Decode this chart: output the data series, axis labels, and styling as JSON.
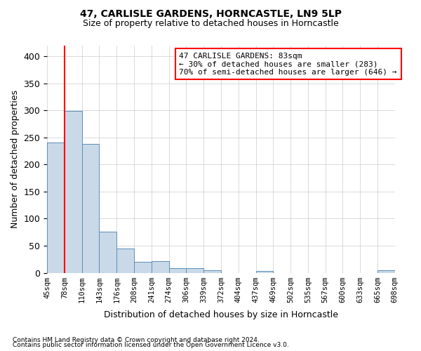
{
  "title1": "47, CARLISLE GARDENS, HORNCASTLE, LN9 5LP",
  "title2": "Size of property relative to detached houses in Horncastle",
  "xlabel": "Distribution of detached houses by size in Horncastle",
  "ylabel": "Number of detached properties",
  "footnote1": "Contains HM Land Registry data © Crown copyright and database right 2024.",
  "footnote2": "Contains public sector information licensed under the Open Government Licence v3.0.",
  "bin_labels": [
    "45sqm",
    "78sqm",
    "110sqm",
    "143sqm",
    "176sqm",
    "208sqm",
    "241sqm",
    "274sqm",
    "306sqm",
    "339sqm",
    "372sqm",
    "404sqm",
    "437sqm",
    "469sqm",
    "502sqm",
    "535sqm",
    "567sqm",
    "600sqm",
    "633sqm",
    "665sqm",
    "698sqm"
  ],
  "bar_values": [
    241,
    299,
    238,
    76,
    45,
    20,
    21,
    9,
    8,
    4,
    0,
    0,
    3,
    0,
    0,
    0,
    0,
    0,
    0,
    4
  ],
  "bar_color": "#c9d9e8",
  "bar_edge_color": "#5b8db8",
  "red_line_bin": 1,
  "ylim": [
    0,
    420
  ],
  "yticks": [
    0,
    50,
    100,
    150,
    200,
    250,
    300,
    350,
    400
  ],
  "annotation_text": "47 CARLISLE GARDENS: 83sqm\n← 30% of detached houses are smaller (283)\n70% of semi-detached houses are larger (646) →",
  "background_color": "#ffffff",
  "grid_color": "#cccccc"
}
